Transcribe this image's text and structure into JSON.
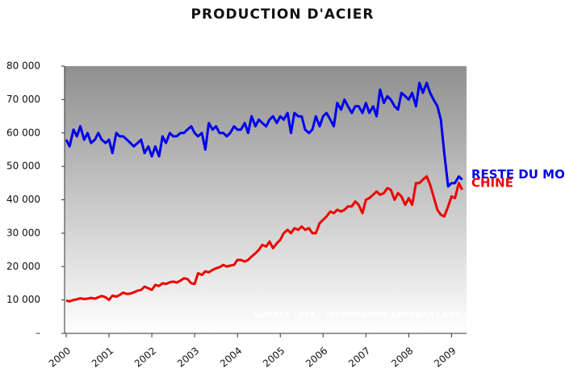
{
  "chart_data": {
    "type": "line",
    "title": "PRODUCTION D'ACIER",
    "annotation": "SOURCE : FFA – INFOGRAPHIE AEROBAR LABS",
    "x": [
      2000,
      2000.08,
      2000.17,
      2000.25,
      2000.33,
      2000.42,
      2000.5,
      2000.58,
      2000.67,
      2000.75,
      2000.83,
      2000.92,
      2001,
      2001.08,
      2001.17,
      2001.25,
      2001.33,
      2001.42,
      2001.5,
      2001.58,
      2001.67,
      2001.75,
      2001.83,
      2001.92,
      2002,
      2002.08,
      2002.17,
      2002.25,
      2002.33,
      2002.42,
      2002.5,
      2002.58,
      2002.67,
      2002.75,
      2002.83,
      2002.92,
      2003,
      2003.08,
      2003.17,
      2003.25,
      2003.33,
      2003.42,
      2003.5,
      2003.58,
      2003.67,
      2003.75,
      2003.83,
      2003.92,
      2004,
      2004.08,
      2004.17,
      2004.25,
      2004.33,
      2004.42,
      2004.5,
      2004.58,
      2004.67,
      2004.75,
      2004.83,
      2004.92,
      2005,
      2005.08,
      2005.17,
      2005.25,
      2005.33,
      2005.42,
      2005.5,
      2005.58,
      2005.67,
      2005.75,
      2005.83,
      2005.92,
      2006,
      2006.08,
      2006.17,
      2006.25,
      2006.33,
      2006.42,
      2006.5,
      2006.58,
      2006.67,
      2006.75,
      2006.83,
      2006.92,
      2007,
      2007.08,
      2007.17,
      2007.25,
      2007.33,
      2007.42,
      2007.5,
      2007.58,
      2007.67,
      2007.75,
      2007.83,
      2007.92,
      2008,
      2008.08,
      2008.17,
      2008.25,
      2008.33,
      2008.42,
      2008.5,
      2008.58,
      2008.67,
      2008.75,
      2008.83,
      2008.92,
      2009,
      2009.08,
      2009.17,
      2009.25
    ],
    "series": [
      {
        "name": "RESTE DU MONDE",
        "color": "#0000ee",
        "values": [
          58000,
          56000,
          61000,
          59000,
          62000,
          58000,
          60000,
          57000,
          58000,
          60000,
          58000,
          57000,
          58000,
          54000,
          60000,
          59000,
          59000,
          58000,
          57000,
          56000,
          57000,
          58000,
          54000,
          56000,
          53000,
          56000,
          53000,
          59000,
          57000,
          60000,
          59000,
          59000,
          60000,
          60000,
          61000,
          62000,
          60000,
          59000,
          60000,
          55000,
          63000,
          61000,
          62000,
          60000,
          60000,
          59000,
          60000,
          62000,
          61000,
          61000,
          63000,
          60000,
          65000,
          62000,
          64000,
          63000,
          62000,
          64000,
          65000,
          63000,
          65000,
          64000,
          66000,
          60000,
          66000,
          65000,
          65000,
          61000,
          60000,
          61000,
          65000,
          62000,
          65000,
          66000,
          64000,
          62000,
          69000,
          67000,
          70000,
          68000,
          66000,
          68000,
          68000,
          66000,
          69000,
          66000,
          68000,
          65000,
          73000,
          69000,
          71000,
          70000,
          68000,
          67000,
          72000,
          71000,
          70000,
          72000,
          68000,
          75000,
          72000,
          75000,
          72000,
          70000,
          68000,
          64000,
          54000,
          44000,
          45000,
          45000,
          47000,
          46000
        ]
      },
      {
        "name": "CHINE",
        "color": "#ee0000",
        "values": [
          9800,
          9600,
          10000,
          10200,
          10500,
          10300,
          10400,
          10600,
          10400,
          10800,
          11200,
          10800,
          10000,
          11300,
          11000,
          11500,
          12200,
          11800,
          11900,
          12300,
          12800,
          13000,
          14000,
          13500,
          13000,
          14500,
          14200,
          15000,
          14800,
          15300,
          15500,
          15200,
          15800,
          16500,
          16300,
          15000,
          14800,
          18000,
          17500,
          18600,
          18300,
          19000,
          19500,
          19800,
          20500,
          20000,
          20300,
          20500,
          22000,
          22000,
          21500,
          22000,
          23000,
          24000,
          25000,
          26500,
          26000,
          27500,
          25500,
          27000,
          28000,
          30000,
          31000,
          30000,
          31500,
          31000,
          32000,
          31000,
          31500,
          30000,
          30000,
          33000,
          34000,
          35000,
          36500,
          36000,
          37000,
          36500,
          37000,
          38000,
          38000,
          39500,
          38500,
          36000,
          40000,
          40500,
          41500,
          42500,
          41500,
          42000,
          43500,
          43000,
          40000,
          42000,
          41000,
          38500,
          40500,
          38500,
          45000,
          45000,
          46000,
          47000,
          44500,
          41000,
          37000,
          35500,
          35000,
          38000,
          41000,
          40500,
          45000,
          43000
        ]
      }
    ],
    "xlim": [
      2000,
      2009.35
    ],
    "xticks": [
      2000,
      2001,
      2002,
      2003,
      2004,
      2005,
      2006,
      2007,
      2008,
      2009
    ],
    "ylim": [
      0,
      80000
    ],
    "yticks": [
      {
        "value": 0,
        "label": "–"
      },
      {
        "value": 10000,
        "label": "10 000"
      },
      {
        "value": 20000,
        "label": "20 000"
      },
      {
        "value": 30000,
        "label": "30 000"
      },
      {
        "value": 40000,
        "label": "40 000"
      },
      {
        "value": 50000,
        "label": "50 000"
      },
      {
        "value": 60000,
        "label": "60 000"
      },
      {
        "value": 70000,
        "label": "70 000"
      },
      {
        "value": 80000,
        "label": "80 000"
      }
    ]
  }
}
